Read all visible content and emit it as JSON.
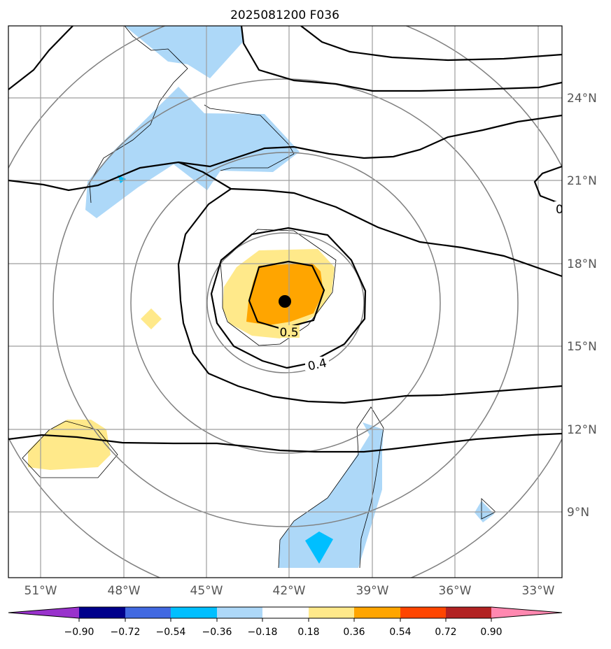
{
  "chart_data": {
    "type": "contour-map",
    "title": "2025081200 F036",
    "center_marker": {
      "lon": -42.0,
      "lat": 16.6
    },
    "xaxis": {
      "ticks": [
        -51,
        -48,
        -45,
        -42,
        -39,
        -36,
        -33
      ],
      "labels": [
        "51°W",
        "48°W",
        "45°W",
        "42°W",
        "39°W",
        "36°W",
        "33°W"
      ],
      "range": [
        -52.2,
        -32.2
      ]
    },
    "yaxis": {
      "ticks": [
        9,
        12,
        15,
        18,
        21,
        24
      ],
      "labels": [
        "9°N",
        "12°N",
        "15°N",
        "18°N",
        "21°N",
        "24°N"
      ],
      "range": [
        6.8,
        26.2
      ]
    },
    "grid": true,
    "contour_labels": [
      "0.5",
      "0.4",
      "0"
    ],
    "colorbar": {
      "orientation": "horizontal",
      "extend": "both",
      "levels": [
        -0.9,
        -0.72,
        -0.54,
        -0.36,
        -0.18,
        0.18,
        0.36,
        0.54,
        0.72,
        0.9
      ],
      "tick_labels": [
        "−0.90",
        "−0.72",
        "−0.54",
        "−0.36",
        "−0.18",
        "0.18",
        "0.36",
        "0.54",
        "0.72",
        "0.90"
      ],
      "colors": [
        "#9932cc",
        "#00008b",
        "#4169e1",
        "#00bfff",
        "#add8f8",
        "#ffffff",
        "#ffe98a",
        "#ffa500",
        "#ff4500",
        "#b22222",
        "#ff88b0"
      ]
    }
  }
}
